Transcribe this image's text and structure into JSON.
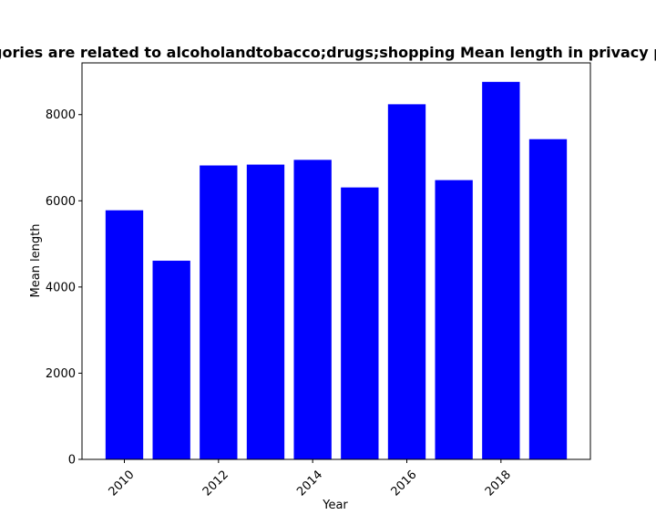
{
  "chart_data": {
    "type": "bar",
    "title": "Categories are related to alcoholandtobacco;drugs;shopping Mean length in privacy policies",
    "xlabel": "Year",
    "ylabel": "Mean length",
    "x": [
      2010,
      2011,
      2012,
      2013,
      2014,
      2015,
      2016,
      2017,
      2018,
      2019
    ],
    "values": [
      5780,
      4610,
      6820,
      6840,
      6950,
      6310,
      8240,
      6480,
      8760,
      7430
    ],
    "bar_color": "#0000ff",
    "ylim": [
      0,
      9200
    ],
    "xlim": [
      2009.1,
      2019.9
    ],
    "yticks": [
      0,
      2000,
      4000,
      6000,
      8000
    ],
    "xticks": [
      2010,
      2012,
      2014,
      2016,
      2018
    ],
    "xtick_rotation": 45,
    "grid": false,
    "legend": false
  }
}
